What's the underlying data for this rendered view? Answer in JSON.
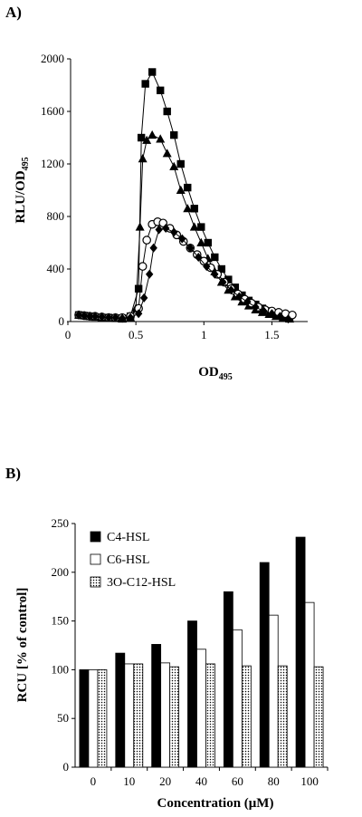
{
  "panels": {
    "a_label": "A)",
    "b_label": "B)"
  },
  "chart_data": [
    {
      "type": "line",
      "panel": "A)",
      "xlabel_main": "OD",
      "xlabel_sub": "495",
      "ylabel_main": "RLU/OD",
      "ylabel_sub": "495",
      "xlim": [
        0,
        1.75
      ],
      "ylim": [
        0,
        2000
      ],
      "xticks": [
        0,
        0.5,
        1,
        1.5
      ],
      "xtick_labels": [
        "0",
        "0.5",
        "1",
        "1.5"
      ],
      "yticks": [
        0,
        400,
        800,
        1200,
        1600,
        2000
      ],
      "ytick_labels": [
        "0",
        "400",
        "800",
        "1200",
        "1600",
        "2000"
      ],
      "grid": false,
      "series": [
        {
          "marker": "square",
          "x": [
            0.08,
            0.12,
            0.16,
            0.2,
            0.25,
            0.3,
            0.35,
            0.4,
            0.46,
            0.52,
            0.54,
            0.57,
            0.62,
            0.68,
            0.73,
            0.78,
            0.83,
            0.88,
            0.93,
            0.98,
            1.03,
            1.08,
            1.13,
            1.18,
            1.23,
            1.28,
            1.33,
            1.38,
            1.43,
            1.48,
            1.53,
            1.58,
            1.63
          ],
          "y": [
            50,
            45,
            40,
            35,
            30,
            30,
            25,
            25,
            40,
            250,
            1400,
            1810,
            1900,
            1760,
            1600,
            1420,
            1200,
            1020,
            860,
            720,
            600,
            490,
            400,
            320,
            260,
            200,
            160,
            130,
            100,
            80,
            60,
            40,
            25
          ]
        },
        {
          "marker": "triangle",
          "x": [
            0.08,
            0.12,
            0.16,
            0.2,
            0.25,
            0.3,
            0.35,
            0.4,
            0.46,
            0.5,
            0.53,
            0.55,
            0.58,
            0.62,
            0.68,
            0.73,
            0.78,
            0.83,
            0.88,
            0.93,
            0.98,
            1.03,
            1.08,
            1.13,
            1.18,
            1.23,
            1.28,
            1.33,
            1.38,
            1.43,
            1.48,
            1.53,
            1.58,
            1.63
          ],
          "y": [
            50,
            45,
            40,
            35,
            30,
            30,
            25,
            20,
            30,
            100,
            720,
            1240,
            1380,
            1420,
            1390,
            1280,
            1180,
            1000,
            860,
            720,
            600,
            480,
            380,
            300,
            240,
            190,
            150,
            120,
            90,
            70,
            55,
            40,
            25,
            20
          ]
        },
        {
          "marker": "circle",
          "x": [
            0.08,
            0.12,
            0.16,
            0.2,
            0.25,
            0.3,
            0.35,
            0.4,
            0.46,
            0.52,
            0.55,
            0.58,
            0.62,
            0.66,
            0.7,
            0.75,
            0.8,
            0.85,
            0.9,
            0.95,
            1.0,
            1.05,
            1.1,
            1.15,
            1.2,
            1.25,
            1.3,
            1.35,
            1.4,
            1.45,
            1.5,
            1.55,
            1.6,
            1.65
          ],
          "y": [
            50,
            45,
            40,
            40,
            35,
            30,
            30,
            30,
            40,
            100,
            420,
            620,
            740,
            760,
            750,
            710,
            660,
            610,
            560,
            510,
            460,
            410,
            360,
            300,
            250,
            210,
            170,
            140,
            110,
            90,
            80,
            70,
            60,
            50
          ]
        },
        {
          "marker": "diamond",
          "x": [
            0.08,
            0.12,
            0.16,
            0.2,
            0.25,
            0.3,
            0.35,
            0.4,
            0.46,
            0.52,
            0.56,
            0.6,
            0.63,
            0.67,
            0.72,
            0.78,
            0.84,
            0.9,
            0.96,
            1.02,
            1.08,
            1.14,
            1.2,
            1.26,
            1.32,
            1.38,
            1.44,
            1.5,
            1.56,
            1.62
          ],
          "y": [
            50,
            45,
            40,
            40,
            35,
            30,
            30,
            25,
            30,
            60,
            180,
            360,
            560,
            700,
            710,
            680,
            630,
            560,
            490,
            420,
            360,
            300,
            240,
            190,
            150,
            110,
            80,
            60,
            40,
            20
          ]
        }
      ]
    },
    {
      "type": "bar",
      "panel": "B)",
      "xlabel": "Concentration (μM)",
      "ylabel": "RCU [% of control]",
      "ylim": [
        0,
        250
      ],
      "yticks": [
        0,
        50,
        100,
        150,
        200,
        250
      ],
      "ytick_labels": [
        "0",
        "50",
        "100",
        "150",
        "200",
        "250"
      ],
      "categories": [
        "0",
        "10",
        "20",
        "40",
        "60",
        "80",
        "100"
      ],
      "legend_position": "top-left",
      "series": [
        {
          "name": "C4-HSL",
          "fill": "solid-black",
          "values": [
            100,
            117,
            126,
            150,
            180,
            210,
            236
          ]
        },
        {
          "name": "C6-HSL",
          "fill": "white",
          "values": [
            100,
            106,
            107,
            121,
            141,
            156,
            169
          ]
        },
        {
          "name": "3O-C12-HSL",
          "fill": "dotted",
          "values": [
            100,
            106,
            103,
            106,
            104,
            104,
            103
          ]
        }
      ]
    }
  ]
}
